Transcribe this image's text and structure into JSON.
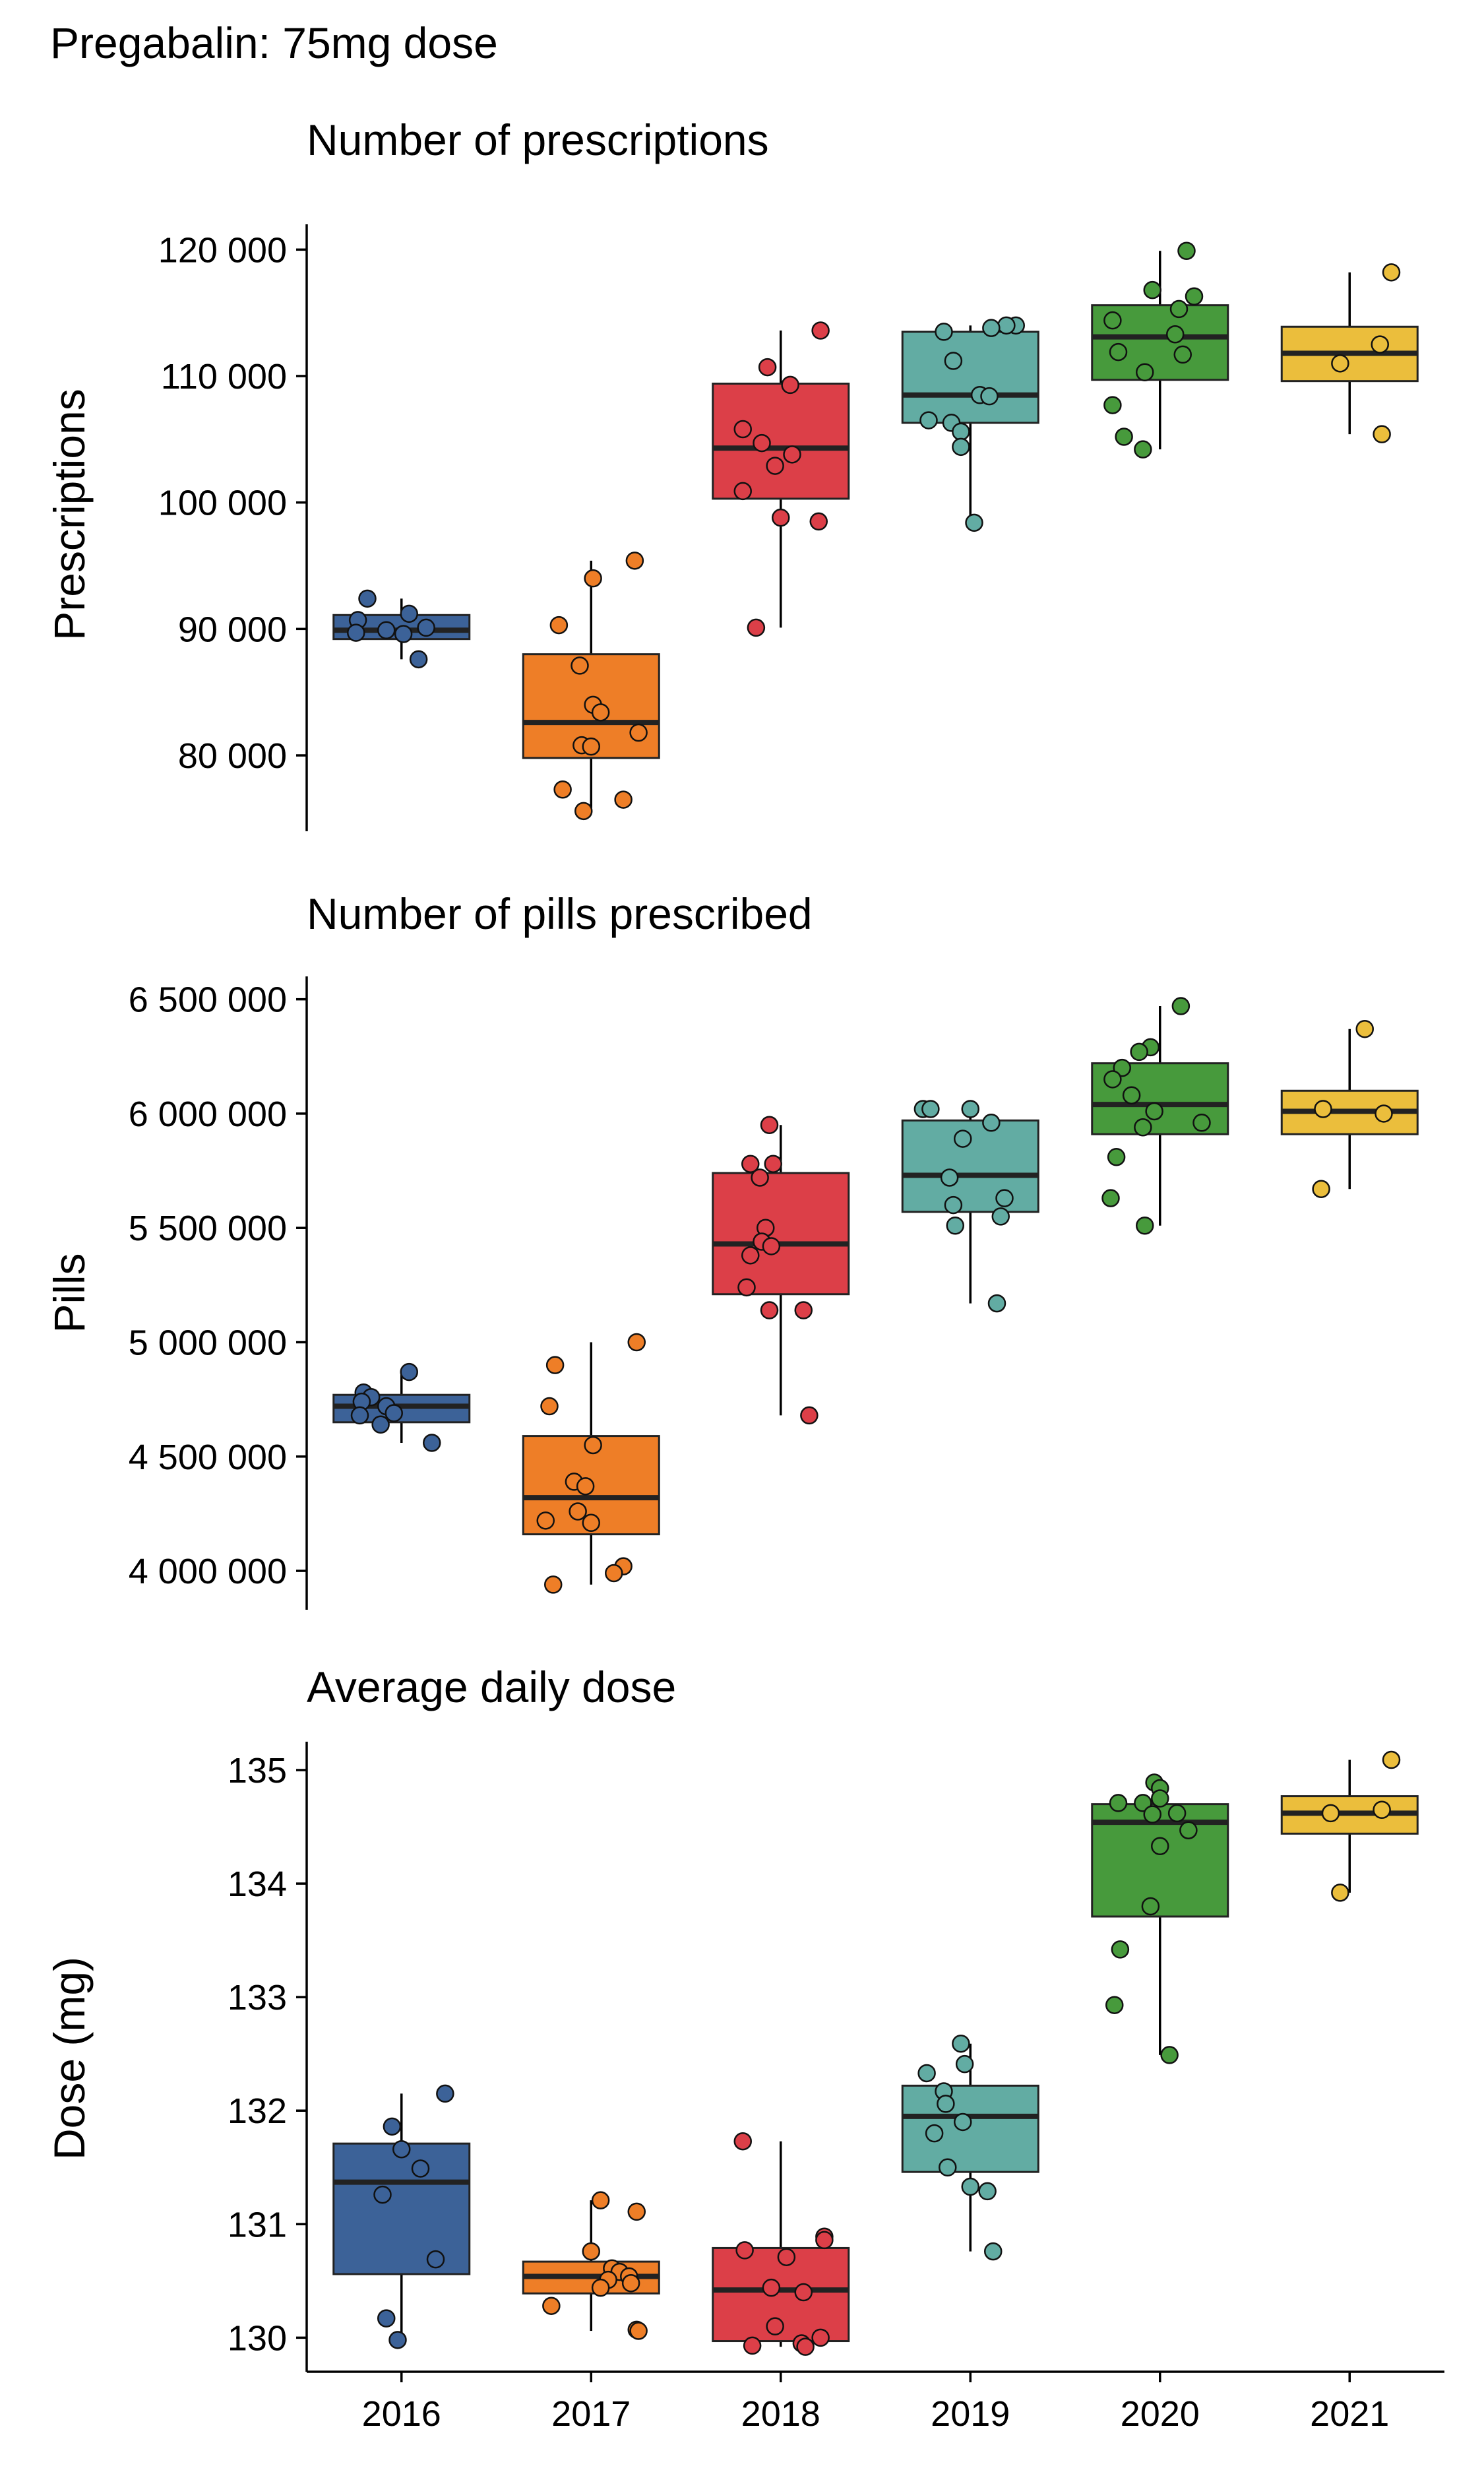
{
  "figure": {
    "title": "Pregabalin: 75mg dose"
  },
  "colors": {
    "2016": "#3C6298",
    "2017": "#EE7E27",
    "2018": "#DC3F48",
    "2019": "#62ACA3",
    "2020": "#479A3C",
    "2021": "#EBBE3C"
  },
  "chart_data": [
    {
      "type": "box",
      "title": "Number of prescriptions",
      "ylabel": "Prescriptions",
      "categories": [
        "2016",
        "2017",
        "2018",
        "2019",
        "2020",
        "2021"
      ],
      "ylim": [
        74000,
        122000
      ],
      "yticks": [
        80000,
        90000,
        100000,
        110000,
        120000
      ],
      "ytick_labels": [
        "80 000",
        "90 000",
        "100 000",
        "110 000",
        "120 000"
      ],
      "boxes": [
        {
          "q1": 89200,
          "median": 89900,
          "q3": 91100,
          "whisker_low": 87600,
          "whisker_high": 92400
        },
        {
          "q1": 79800,
          "median": 82600,
          "q3": 88000,
          "whisker_low": 75600,
          "whisker_high": 95400
        },
        {
          "q1": 100300,
          "median": 104300,
          "q3": 109400,
          "whisker_low": 90100,
          "whisker_high": 113600
        },
        {
          "q1": 106300,
          "median": 108500,
          "q3": 113500,
          "whisker_low": 98400,
          "whisker_high": 114000
        },
        {
          "q1": 109700,
          "median": 113100,
          "q3": 115600,
          "whisker_low": 104200,
          "whisker_high": 119900
        },
        {
          "q1": 109600,
          "median": 111800,
          "q3": 113900,
          "whisker_low": 105400,
          "whisker_high": 118200
        }
      ],
      "points": [
        [
          [
            92400,
            -0.18
          ],
          [
            91200,
            0.04
          ],
          [
            90700,
            -0.23
          ],
          [
            90100,
            0.13
          ],
          [
            89900,
            -0.08
          ],
          [
            89700,
            -0.24
          ],
          [
            89600,
            0.01
          ],
          [
            87600,
            0.09
          ]
        ],
        [
          [
            95400,
            0.23
          ],
          [
            94000,
            0.01
          ],
          [
            90300,
            -0.17
          ],
          [
            87100,
            -0.06
          ],
          [
            84000,
            0.01
          ],
          [
            83400,
            0.05
          ],
          [
            81800,
            0.25
          ],
          [
            80800,
            -0.05
          ],
          [
            80700,
            0.0
          ],
          [
            77300,
            -0.15
          ],
          [
            76500,
            0.17
          ],
          [
            75600,
            -0.04
          ]
        ],
        [
          [
            113600,
            0.21
          ],
          [
            110700,
            -0.07
          ],
          [
            109300,
            0.05
          ],
          [
            105800,
            -0.2
          ],
          [
            104700,
            -0.1
          ],
          [
            103800,
            0.06
          ],
          [
            102900,
            -0.03
          ],
          [
            100900,
            -0.2
          ],
          [
            98800,
            0.0
          ],
          [
            98500,
            0.2
          ],
          [
            90100,
            -0.13
          ]
        ],
        [
          [
            114000,
            0.24
          ],
          [
            114000,
            0.19
          ],
          [
            113800,
            0.11
          ],
          [
            113500,
            -0.14
          ],
          [
            111200,
            -0.09
          ],
          [
            108500,
            0.05
          ],
          [
            108400,
            0.1
          ],
          [
            106500,
            -0.22
          ],
          [
            106300,
            -0.1
          ],
          [
            105600,
            -0.05
          ],
          [
            104400,
            -0.05
          ],
          [
            98400,
            0.02
          ]
        ],
        [
          [
            119900,
            0.14
          ],
          [
            116800,
            -0.04
          ],
          [
            116300,
            0.18
          ],
          [
            115300,
            0.1
          ],
          [
            114400,
            -0.25
          ],
          [
            113300,
            0.08
          ],
          [
            111900,
            -0.22
          ],
          [
            111700,
            0.12
          ],
          [
            110300,
            -0.08
          ],
          [
            107700,
            -0.25
          ],
          [
            105200,
            -0.19
          ],
          [
            104200,
            -0.09
          ]
        ],
        [
          [
            118200,
            0.22
          ],
          [
            112500,
            0.16
          ],
          [
            111000,
            -0.05
          ],
          [
            105400,
            0.17
          ]
        ]
      ]
    },
    {
      "type": "box",
      "title": "Number of pills prescribed",
      "ylabel": "Pills",
      "categories": [
        "2016",
        "2017",
        "2018",
        "2019",
        "2020",
        "2021"
      ],
      "ylim": [
        3830000,
        6600000
      ],
      "yticks": [
        4000000,
        4500000,
        5000000,
        5500000,
        6000000,
        6500000
      ],
      "ytick_labels": [
        "4 000 000",
        "4 500 000",
        "5 000 000",
        "5 500 000",
        "6 000 000",
        "6 500 000"
      ],
      "boxes": [
        {
          "q1": 4650000,
          "median": 4720000,
          "q3": 4770000,
          "whisker_low": 4560000,
          "whisker_high": 4870000
        },
        {
          "q1": 4160000,
          "median": 4320000,
          "q3": 4590000,
          "whisker_low": 3940000,
          "whisker_high": 5000000
        },
        {
          "q1": 5210000,
          "median": 5430000,
          "q3": 5740000,
          "whisker_low": 4680000,
          "whisker_high": 5950000
        },
        {
          "q1": 5570000,
          "median": 5730000,
          "q3": 5970000,
          "whisker_low": 5170000,
          "whisker_high": 6020000
        },
        {
          "q1": 5910000,
          "median": 6040000,
          "q3": 6220000,
          "whisker_low": 5510000,
          "whisker_high": 6470000
        },
        {
          "q1": 5910000,
          "median": 6010000,
          "q3": 6100000,
          "whisker_low": 5670000,
          "whisker_high": 6370000
        }
      ],
      "points": [
        [
          [
            4870000,
            0.04
          ],
          [
            4780000,
            -0.2
          ],
          [
            4760000,
            -0.16
          ],
          [
            4740000,
            -0.21
          ],
          [
            4720000,
            -0.08
          ],
          [
            4690000,
            -0.04
          ],
          [
            4680000,
            -0.22
          ],
          [
            4640000,
            -0.11
          ],
          [
            4560000,
            0.16
          ]
        ],
        [
          [
            5000000,
            0.24
          ],
          [
            4900000,
            -0.19
          ],
          [
            4720000,
            -0.22
          ],
          [
            4550000,
            0.01
          ],
          [
            4390000,
            -0.09
          ],
          [
            4370000,
            -0.03
          ],
          [
            4260000,
            -0.07
          ],
          [
            4220000,
            -0.24
          ],
          [
            4210000,
            0.0
          ],
          [
            4020000,
            0.17
          ],
          [
            3990000,
            0.12
          ],
          [
            3940000,
            -0.2
          ]
        ],
        [
          [
            5950000,
            -0.06
          ],
          [
            5780000,
            -0.16
          ],
          [
            5780000,
            -0.04
          ],
          [
            5720000,
            -0.11
          ],
          [
            5500000,
            -0.08
          ],
          [
            5440000,
            -0.1
          ],
          [
            5420000,
            -0.05
          ],
          [
            5380000,
            -0.16
          ],
          [
            5240000,
            -0.18
          ],
          [
            5140000,
            -0.06
          ],
          [
            5140000,
            0.12
          ],
          [
            4680000,
            0.15
          ]
        ],
        [
          [
            6020000,
            -0.25
          ],
          [
            6020000,
            -0.21
          ],
          [
            6020000,
            0.0
          ],
          [
            5960000,
            0.11
          ],
          [
            5890000,
            -0.04
          ],
          [
            5720000,
            -0.11
          ],
          [
            5630000,
            0.18
          ],
          [
            5600000,
            -0.09
          ],
          [
            5550000,
            0.16
          ],
          [
            5510000,
            -0.08
          ],
          [
            5170000,
            0.14
          ]
        ],
        [
          [
            6470000,
            0.11
          ],
          [
            6290000,
            -0.05
          ],
          [
            6270000,
            -0.11
          ],
          [
            6200000,
            -0.2
          ],
          [
            6150000,
            -0.25
          ],
          [
            6080000,
            -0.15
          ],
          [
            6010000,
            -0.03
          ],
          [
            5960000,
            0.22
          ],
          [
            5940000,
            -0.09
          ],
          [
            5810000,
            -0.23
          ],
          [
            5630000,
            -0.26
          ],
          [
            5510000,
            -0.08
          ]
        ],
        [
          [
            6370000,
            0.08
          ],
          [
            6020000,
            -0.14
          ],
          [
            6000000,
            0.18
          ],
          [
            5670000,
            -0.15
          ]
        ]
      ]
    },
    {
      "type": "box",
      "title": "Average daily dose",
      "ylabel": "Dose (mg)",
      "categories": [
        "2016",
        "2017",
        "2018",
        "2019",
        "2020",
        "2021"
      ],
      "ylim": [
        129.7,
        135.25
      ],
      "yticks": [
        130,
        131,
        132,
        133,
        134,
        135
      ],
      "ytick_labels": [
        "130",
        "131",
        "132",
        "133",
        "134",
        "135"
      ],
      "boxes": [
        {
          "q1": 130.56,
          "median": 131.37,
          "q3": 131.71,
          "whisker_low": 129.98,
          "whisker_high": 132.15
        },
        {
          "q1": 130.39,
          "median": 130.54,
          "q3": 130.67,
          "whisker_low": 130.06,
          "whisker_high": 131.21
        },
        {
          "q1": 129.97,
          "median": 130.42,
          "q3": 130.79,
          "whisker_low": 129.92,
          "whisker_high": 131.73
        },
        {
          "q1": 131.46,
          "median": 131.95,
          "q3": 132.22,
          "whisker_low": 130.76,
          "whisker_high": 132.59
        },
        {
          "q1": 133.71,
          "median": 134.54,
          "q3": 134.7,
          "whisker_low": 132.49,
          "whisker_high": 134.89
        },
        {
          "q1": 134.44,
          "median": 134.62,
          "q3": 134.77,
          "whisker_low": 133.92,
          "whisker_high": 135.09
        }
      ],
      "points": [
        [
          [
            132.15,
            0.23
          ],
          [
            131.86,
            -0.05
          ],
          [
            131.66,
            0.0
          ],
          [
            131.49,
            0.1
          ],
          [
            131.26,
            -0.1
          ],
          [
            130.69,
            0.18
          ],
          [
            130.17,
            -0.08
          ],
          [
            129.98,
            -0.02
          ]
        ],
        [
          [
            131.21,
            0.05
          ],
          [
            131.11,
            0.24
          ],
          [
            130.76,
            0.0
          ],
          [
            130.61,
            0.11
          ],
          [
            130.58,
            0.15
          ],
          [
            130.54,
            0.2
          ],
          [
            130.51,
            0.09
          ],
          [
            130.48,
            0.21
          ],
          [
            130.44,
            0.05
          ],
          [
            130.28,
            -0.21
          ],
          [
            130.07,
            0.24
          ],
          [
            130.06,
            0.25
          ]
        ],
        [
          [
            131.73,
            -0.2
          ],
          [
            130.89,
            0.23
          ],
          [
            130.86,
            0.23
          ],
          [
            130.77,
            -0.19
          ],
          [
            130.71,
            0.03
          ],
          [
            130.44,
            -0.05
          ],
          [
            130.4,
            0.12
          ],
          [
            130.1,
            -0.03
          ],
          [
            130.0,
            0.21
          ],
          [
            129.95,
            0.11
          ],
          [
            129.93,
            -0.15
          ],
          [
            129.92,
            0.13
          ]
        ],
        [
          [
            132.59,
            -0.05
          ],
          [
            132.41,
            -0.03
          ],
          [
            132.33,
            -0.23
          ],
          [
            132.17,
            -0.14
          ],
          [
            132.06,
            -0.13
          ],
          [
            131.9,
            -0.04
          ],
          [
            131.8,
            -0.19
          ],
          [
            131.5,
            -0.12
          ],
          [
            131.33,
            0.0
          ],
          [
            131.29,
            0.09
          ],
          [
            130.76,
            0.12
          ]
        ],
        [
          [
            134.89,
            -0.03
          ],
          [
            134.84,
            0.0
          ],
          [
            134.75,
            0.0
          ],
          [
            134.71,
            -0.22
          ],
          [
            134.71,
            -0.09
          ],
          [
            134.62,
            0.09
          ],
          [
            134.61,
            -0.04
          ],
          [
            134.47,
            0.15
          ],
          [
            134.33,
            0.0
          ],
          [
            133.8,
            -0.05
          ],
          [
            133.42,
            -0.21
          ],
          [
            132.93,
            -0.24
          ],
          [
            132.49,
            0.05
          ]
        ],
        [
          [
            135.09,
            0.22
          ],
          [
            134.65,
            0.17
          ],
          [
            134.62,
            -0.1
          ],
          [
            133.92,
            -0.05
          ]
        ]
      ]
    }
  ]
}
